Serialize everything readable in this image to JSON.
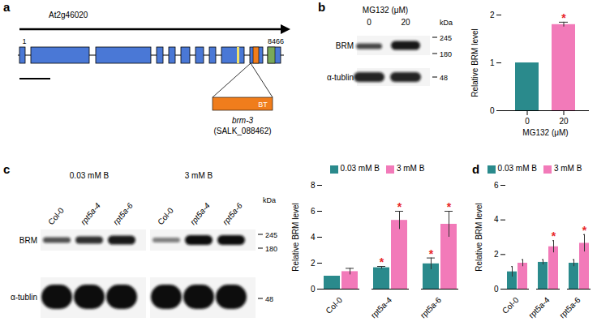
{
  "figure": {
    "panel_labels": [
      "a",
      "b",
      "c",
      "d"
    ]
  },
  "gene_diagram": {
    "gene": "At2g46020",
    "start": 1,
    "end": 8466,
    "insert": "BT",
    "allele": "brm-3",
    "line": "(SALK_088462)"
  },
  "blots": [
    {
      "header": "MG132 (μM)",
      "lanes": [
        "0",
        "20"
      ],
      "rows": [
        "BRM",
        "α-tublin"
      ],
      "unit": "kDa",
      "markers": [
        245,
        180,
        48
      ]
    },
    {
      "groups": [
        "0.03 mM B",
        "3 mM B"
      ],
      "lanes": [
        "Col-0",
        "rpt5a-4",
        "rpt5a-6",
        "Col-0",
        "rpt5a-4",
        "rpt5a-6"
      ],
      "rows": [
        "BRM",
        "α-tublin"
      ],
      "unit": "kDa",
      "markers": [
        245,
        180,
        48
      ]
    }
  ],
  "chart_data": [
    {
      "type": "bar",
      "categories": [
        "0",
        "20"
      ],
      "values": [
        1,
        1.8
      ],
      "errors": [
        0,
        0.05
      ],
      "significance": [
        false,
        true
      ],
      "significance_label": "*",
      "colors": [
        "#2a8a8c",
        "#f27ab9"
      ],
      "xlabel": "MG132 (μM)",
      "ylabel": "Relative BRM level",
      "ylim": [
        0,
        2
      ],
      "yticks": [
        0,
        1,
        2
      ]
    },
    {
      "type": "bar",
      "categories": [
        "Col-0",
        "rpt5a-4",
        "rpt5a-6"
      ],
      "series": [
        {
          "name": "0.03 mM B",
          "color": "#2a8a8c",
          "values": [
            1,
            1.65,
            1.95
          ],
          "errors": [
            0,
            0.1,
            0.45
          ],
          "significance": [
            false,
            true,
            true
          ]
        },
        {
          "name": "3 mM B",
          "color": "#f27ab9",
          "values": [
            1.35,
            5.3,
            5.0
          ],
          "errors": [
            0.25,
            0.7,
            1.0
          ],
          "significance": [
            false,
            true,
            true
          ]
        }
      ],
      "significance_label": "*",
      "ylabel": "Relative BRM level",
      "ylim": [
        0,
        8
      ],
      "yticks": [
        0,
        2,
        4,
        6,
        8
      ],
      "legend": "top"
    },
    {
      "type": "bar",
      "categories": [
        "Col-0",
        "rpt5a-4",
        "rpt5a-6"
      ],
      "series": [
        {
          "name": "0.03 mM B",
          "color": "#2a8a8c",
          "values": [
            1.0,
            1.55,
            1.5
          ],
          "errors": [
            0.3,
            0.15,
            0.2
          ],
          "significance": [
            false,
            false,
            false
          ]
        },
        {
          "name": "3 mM B",
          "color": "#f27ab9",
          "values": [
            1.5,
            2.45,
            2.65
          ],
          "errors": [
            0.2,
            0.35,
            0.5
          ],
          "significance": [
            false,
            true,
            true
          ]
        }
      ],
      "significance_label": "*",
      "ylabel": "Relative BRM level",
      "ylim": [
        0,
        6
      ],
      "yticks": [
        0,
        2,
        4,
        6
      ],
      "legend": "top"
    }
  ]
}
